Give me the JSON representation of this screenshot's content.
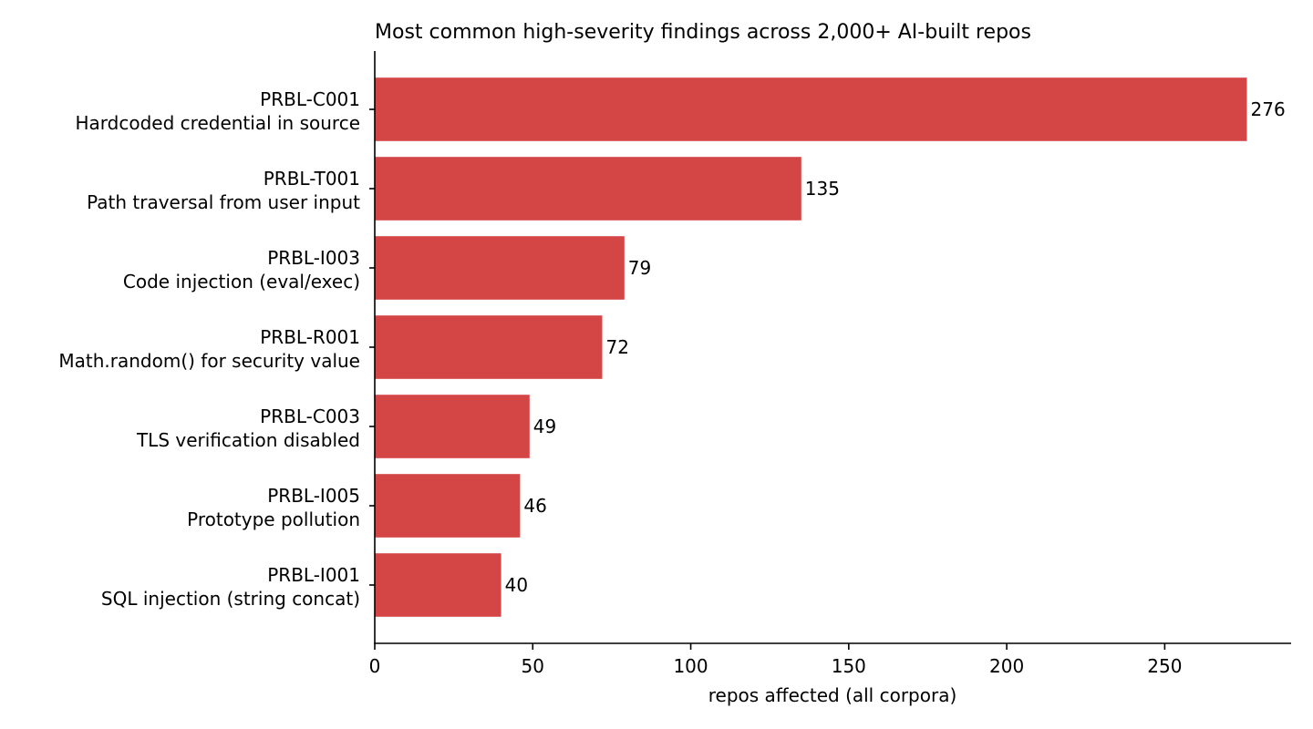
{
  "chart_data": {
    "type": "bar",
    "orientation": "horizontal",
    "title": "Most common high-severity findings across 2,000+ AI-built repos",
    "xlabel": "repos affected (all corpora)",
    "ylabel": "",
    "xlim": [
      0,
      290
    ],
    "xticks": [
      0,
      50,
      100,
      150,
      200,
      250
    ],
    "grid": false,
    "bar_color": "#d44646",
    "categories": [
      {
        "code": "PRBL-C001",
        "description": "Hardcoded credential in source"
      },
      {
        "code": "PRBL-T001",
        "description": "Path traversal from user input"
      },
      {
        "code": "PRBL-I003",
        "description": "Code injection (eval/exec)"
      },
      {
        "code": "PRBL-R001",
        "description": "Math.random() for security value"
      },
      {
        "code": "PRBL-C003",
        "description": "TLS verification disabled"
      },
      {
        "code": "PRBL-I005",
        "description": "Prototype pollution"
      },
      {
        "code": "PRBL-I001",
        "description": "SQL injection (string concat)"
      }
    ],
    "values": [
      276,
      135,
      79,
      72,
      49,
      46,
      40
    ]
  }
}
